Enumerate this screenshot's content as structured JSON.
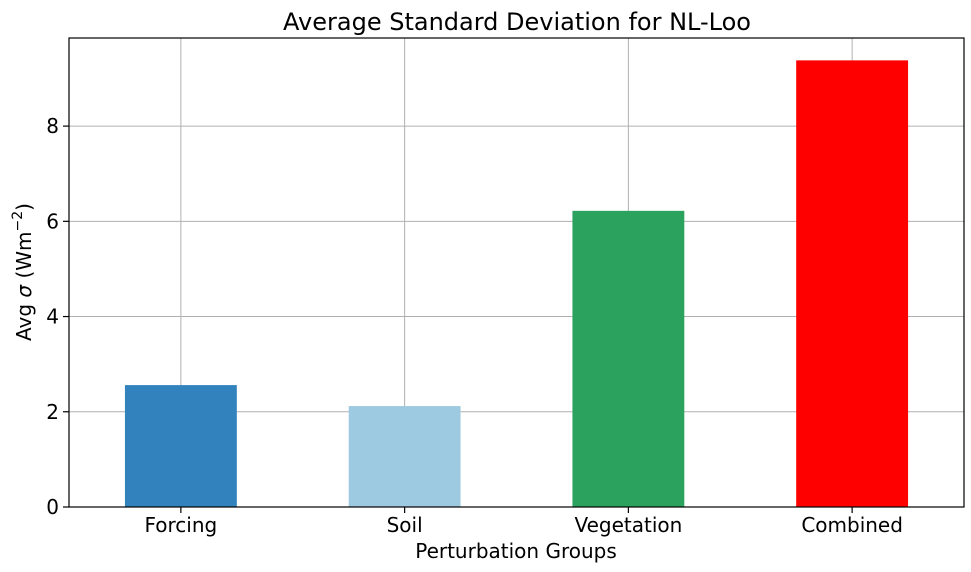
{
  "chart_data": {
    "type": "bar",
    "title": "Average Standard Deviation for NL-Loo",
    "xlabel": "Perturbation Groups",
    "ylabel_prefix": "Avg ",
    "ylabel_symbol": "σ",
    "ylabel_unit_open": " (Wm",
    "ylabel_unit_sup": "−2",
    "ylabel_unit_close": ")",
    "categories": [
      "Forcing",
      "Soil",
      "Vegetation",
      "Combined"
    ],
    "values": [
      2.56,
      2.12,
      6.22,
      9.38
    ],
    "colors": [
      "#3182bd",
      "#9ecae1",
      "#2ca25f",
      "#ff0000"
    ],
    "ylim": [
      0,
      9.85
    ],
    "yticks": [
      0,
      2,
      4,
      6,
      8
    ],
    "grid": true,
    "legend": "none"
  }
}
